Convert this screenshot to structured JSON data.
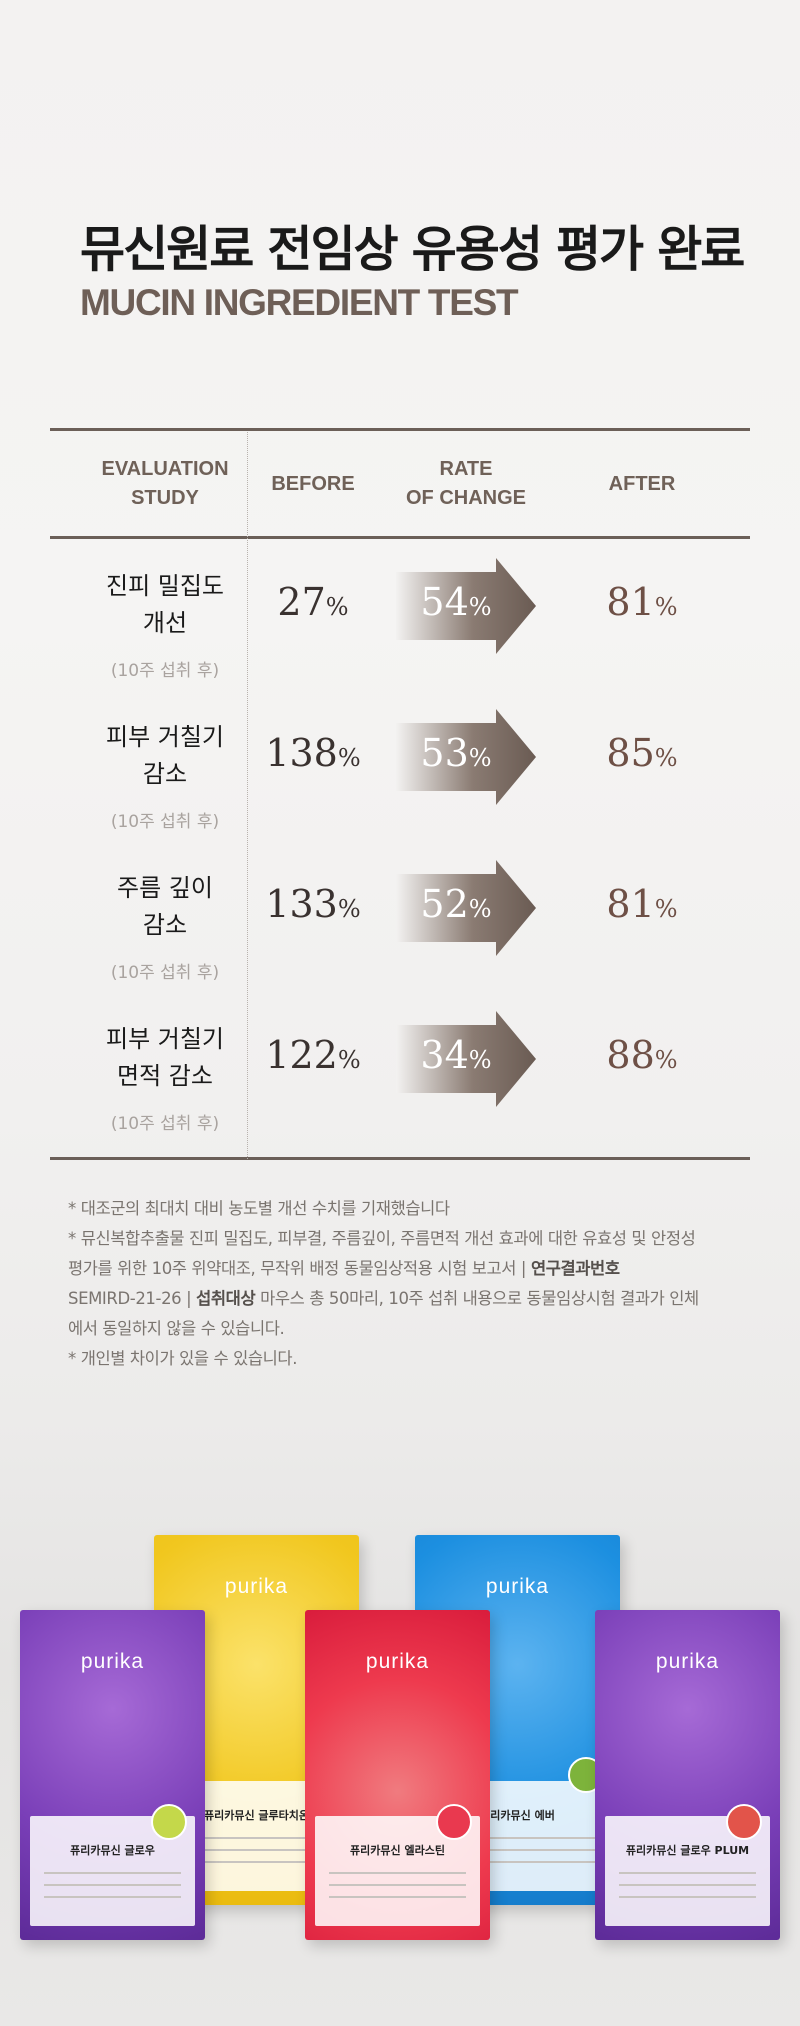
{
  "title_ko": "뮤신원료 전임상 유용성 평가 완료",
  "title_en": "MUCIN INGREDIENT TEST",
  "headers": {
    "study_line1": "EVALUATION",
    "study_line2": "STUDY",
    "before": "BEFORE",
    "rate_line1": "RATE",
    "rate_line2": "OF CHANGE",
    "after": "AFTER"
  },
  "rows": [
    {
      "label_line1": "진피 밀집도",
      "label_line2": "개선",
      "sub": "(10주 섭취 후)",
      "before": "27",
      "rate": "54",
      "after": "81"
    },
    {
      "label_line1": "피부 거칠기",
      "label_line2": "감소",
      "sub": "(10주 섭취 후)",
      "before": "138",
      "rate": "53",
      "after": "85"
    },
    {
      "label_line1": "주름 깊이",
      "label_line2": "감소",
      "sub": "(10주 섭취 후)",
      "before": "133",
      "rate": "52",
      "after": "81"
    },
    {
      "label_line1": "피부 거칠기",
      "label_line2": "면적 감소",
      "sub": "(10주 섭취 후)",
      "before": "122",
      "rate": "34",
      "after": "88"
    }
  ],
  "percent": "%",
  "notes": {
    "n1": "* 대조군의 최대치 대비 농도별 개선 수치를 기재했습니다",
    "n2_a": "* 뮤신복합추출물 진피 밀집도, 피부결, 주름깊이, 주름면적 개선 효과에 대한 유효성 및 안정성",
    "n2_b": "평가를 위한 10주 위약대조, 무작위 배정 동물임상적용 시험 보고서 | ",
    "n2_bold1": "연구결과번호",
    "n2_c": "SEMIRD-21-26 | ",
    "n2_bold2": "섭취대상",
    "n2_d": " 마우스 총 50마리, 10주 섭취 내용으로 동물임상시험 결과가 인체",
    "n2_e": "에서 동일하지 않을 수 있습니다.",
    "n3": "* 개인별 차이가 있을 수 있습니다."
  },
  "products": [
    {
      "brand": "purika",
      "name": "퓨리카뮤신 글루타치온"
    },
    {
      "brand": "purika",
      "name": "퓨리카뮤신 에버"
    },
    {
      "brand": "purika",
      "name": "퓨리카뮤신 글로우"
    },
    {
      "brand": "purika",
      "name": "퓨리카뮤신 엘라스틴"
    },
    {
      "brand": "purika",
      "name": "퓨리카뮤신 글로우 PLUM"
    }
  ],
  "colors": {
    "arrow_dark": "#6f6058",
    "title_en": "#6e5f57",
    "after_value": "#6e5046",
    "yellow_box": "#f1c71f",
    "blue_box": "#1c8fe0",
    "purple_box": "#7a3fb8",
    "red_box": "#ee3a4e"
  }
}
